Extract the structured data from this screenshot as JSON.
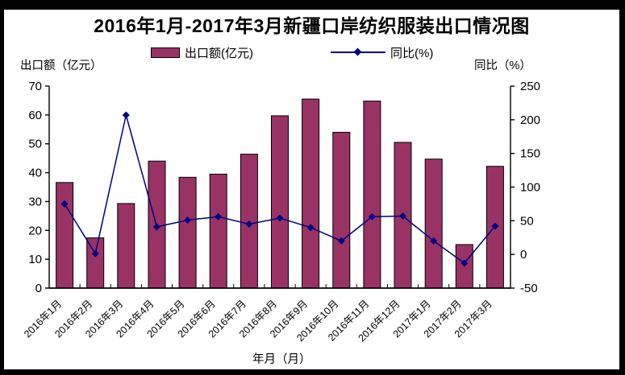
{
  "title": "2016年1月-2017年3月新疆口岸纺织服装出口情况图",
  "legend": {
    "bar_label": "出口额(亿元)",
    "line_label": "同比(%)"
  },
  "axes": {
    "left_title": "出口额（亿元）",
    "right_title": "同比（%）",
    "x_title": "年月（月）"
  },
  "colors": {
    "bar_fill": "#993366",
    "bar_stroke": "#000000",
    "line": "#000080",
    "marker": "#000080",
    "axis": "#000000",
    "frame": "#000000",
    "background": "#ffffff"
  },
  "chart_data": {
    "type": "bar",
    "combo": "bar+line",
    "title": "2016年1月-2017年3月新疆口岸纺织服装出口情况图",
    "categories": [
      "2016年1月",
      "2016年2月",
      "2016年3月",
      "2016年4月",
      "2016年5月",
      "2016年6月",
      "2016年7月",
      "2016年8月",
      "2016年9月",
      "2016年10月",
      "2016年11月",
      "2016年12月",
      "2017年1月",
      "2017年2月",
      "2017年3月"
    ],
    "series": [
      {
        "name": "出口额(亿元)",
        "type": "bar",
        "axis": "left",
        "values": [
          36.6,
          17.4,
          29.3,
          44.0,
          38.4,
          39.5,
          46.4,
          59.7,
          65.5,
          54.0,
          64.8,
          50.5,
          44.7,
          15.1,
          42.2
        ]
      },
      {
        "name": "同比(%)",
        "type": "line",
        "axis": "right",
        "values": [
          75,
          1,
          207,
          41,
          51,
          56,
          45,
          54,
          40,
          20,
          56,
          57,
          20,
          -13,
          42
        ]
      }
    ],
    "left_axis": {
      "title": "出口额（亿元）",
      "min": 0,
      "max": 70,
      "step": 10,
      "ticks": [
        0,
        10,
        20,
        30,
        40,
        50,
        60,
        70
      ]
    },
    "right_axis": {
      "title": "同比（%）",
      "min": -50,
      "max": 250,
      "step": 50,
      "ticks": [
        -50,
        0,
        50,
        100,
        150,
        200,
        250
      ]
    },
    "x_axis": {
      "title": "年月（月）",
      "label_rotation": 45
    },
    "legend_position": "top",
    "grid": false
  }
}
